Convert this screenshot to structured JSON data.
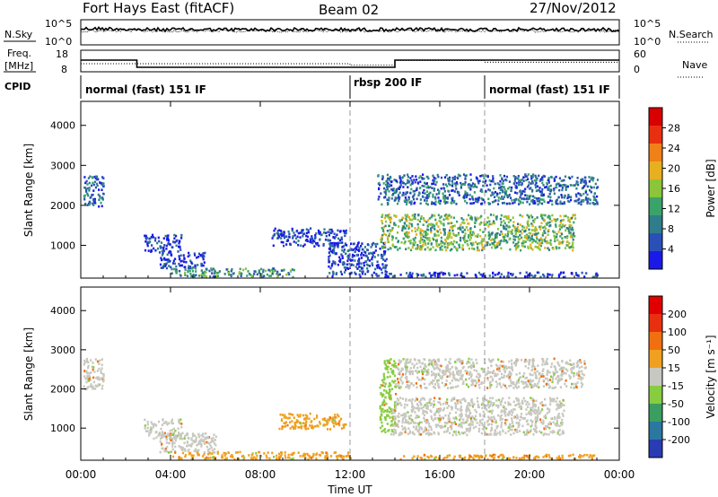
{
  "header": {
    "station": "Fort Hays East (fitACF)",
    "beam": "Beam 02",
    "date": "27/Nov/2012"
  },
  "noise_panel": {
    "left_label": "N.Sky",
    "right_label": "N.Search",
    "left_ticks": [
      "10^5",
      "10^0"
    ],
    "right_ticks": [
      "10^5",
      "10^0"
    ]
  },
  "freq_panel": {
    "left_label_line1": "Freq.",
    "left_label_line2": "[MHz]",
    "right_label": "Nave",
    "left_ticks": [
      "18",
      "8"
    ],
    "right_ticks": [
      "60",
      "0"
    ],
    "freq_steps": [
      {
        "t0": 0,
        "t1": 2.5,
        "mhz": 14.5
      },
      {
        "t0": 2.5,
        "t1": 14.0,
        "mhz": 10.5
      },
      {
        "t0": 14.0,
        "t1": 24.0,
        "mhz": 14.5
      }
    ],
    "nave_steps": [
      {
        "t0": 0,
        "t1": 2.5,
        "nave": 27
      },
      {
        "t0": 2.5,
        "t1": 12.0,
        "nave": 27
      },
      {
        "t0": 12.0,
        "t1": 14.0,
        "nave": 22
      },
      {
        "t0": 14.0,
        "t1": 18.0,
        "nave": 38
      },
      {
        "t0": 18.0,
        "t1": 24.0,
        "nave": 32
      }
    ]
  },
  "cpid": {
    "label": "CPID",
    "segments": [
      {
        "t0": 0,
        "name": "normal (fast) 151 IF"
      },
      {
        "t0": 12.0,
        "name": "rbsp 200 IF"
      },
      {
        "t0": 18.0,
        "name": "normal (fast) 151 IF"
      }
    ]
  },
  "chart_data": [
    {
      "type": "heatmap",
      "ylabel": "Slant Range [km]",
      "xlabel": "Time UT",
      "x_ticks": [
        "00:00",
        "04:00",
        "08:00",
        "12:00",
        "16:00",
        "20:00",
        "00:00"
      ],
      "y_ticks": [
        1000,
        2000,
        3000,
        4000
      ],
      "xlim": [
        0,
        24
      ],
      "ylim": [
        180,
        4600
      ],
      "colorbar_label": "Power [dB]",
      "colorbar_ticks": [
        4,
        8,
        12,
        16,
        20,
        24,
        28
      ],
      "colorbar_range": [
        0,
        32
      ],
      "colorbar_colors": [
        "#1a1ae8",
        "#2a50b8",
        "#2f7d8c",
        "#3aa36a",
        "#8cc43a",
        "#e8b020",
        "#f08018",
        "#e83010",
        "#d80000"
      ],
      "scatter_regions": [
        {
          "t0": 0.1,
          "t1": 1.0,
          "r0": 2000,
          "r1": 2800,
          "level": 2
        },
        {
          "t0": 2.8,
          "t1": 4.5,
          "r0": 850,
          "r1": 1300,
          "level": 1
        },
        {
          "t0": 3.5,
          "t1": 5.5,
          "r0": 450,
          "r1": 850,
          "level": 1
        },
        {
          "t0": 4.0,
          "t1": 9.5,
          "r0": 230,
          "r1": 450,
          "level": 3
        },
        {
          "t0": 8.5,
          "t1": 11.8,
          "r0": 1000,
          "r1": 1450,
          "level": 1
        },
        {
          "t0": 11.0,
          "t1": 13.6,
          "r0": 230,
          "r1": 1100,
          "level": 1
        },
        {
          "t0": 13.2,
          "t1": 20.8,
          "r0": 2050,
          "r1": 2800,
          "level": 2
        },
        {
          "t0": 20.8,
          "t1": 23.0,
          "r0": 2050,
          "r1": 2750,
          "level": 2
        },
        {
          "t0": 13.3,
          "t1": 22.0,
          "r0": 900,
          "r1": 1800,
          "level": 4
        },
        {
          "t0": 13.5,
          "t1": 23.0,
          "r0": 230,
          "r1": 350,
          "level": 1
        }
      ]
    },
    {
      "type": "heatmap",
      "ylabel": "Slant Range [km]",
      "xlabel": "Time UT",
      "x_ticks": [
        "00:00",
        "04:00",
        "08:00",
        "12:00",
        "16:00",
        "20:00",
        "00:00"
      ],
      "y_ticks": [
        1000,
        2000,
        3000,
        4000
      ],
      "xlim": [
        0,
        24
      ],
      "ylim": [
        180,
        4600
      ],
      "colorbar_label": "Velocity [m s⁻¹]",
      "colorbar_ticks": [
        200,
        100,
        50,
        15,
        -15,
        -50,
        -100,
        -200
      ],
      "colorbar_colors": [
        "#2a3cb4",
        "#2a78a0",
        "#3a9e60",
        "#88cc40",
        "#c8c8c0",
        "#f0a020",
        "#f07010",
        "#e83010",
        "#e00000"
      ],
      "scatter_regions": [
        {
          "t0": 0.1,
          "t1": 1.0,
          "r0": 2000,
          "r1": 2800,
          "color": "#c8c8c0"
        },
        {
          "t0": 2.8,
          "t1": 4.5,
          "r0": 750,
          "r1": 1250,
          "color": "#c8c8c0"
        },
        {
          "t0": 3.5,
          "t1": 6.0,
          "r0": 400,
          "r1": 900,
          "color": "#c8c8c0"
        },
        {
          "t0": 4.0,
          "t1": 12.0,
          "r0": 230,
          "r1": 420,
          "color": "#f0a020"
        },
        {
          "t0": 8.8,
          "t1": 11.8,
          "r0": 1000,
          "r1": 1400,
          "color": "#f0a020"
        },
        {
          "t0": 13.3,
          "t1": 14.0,
          "r0": 900,
          "r1": 2800,
          "color": "#88cc40"
        },
        {
          "t0": 14.0,
          "t1": 22.5,
          "r0": 2050,
          "r1": 2800,
          "color": "#c8c8c0"
        },
        {
          "t0": 13.8,
          "t1": 21.5,
          "r0": 850,
          "r1": 1800,
          "color": "#c8c8c0"
        },
        {
          "t0": 14.0,
          "t1": 23.0,
          "r0": 230,
          "r1": 350,
          "color": "#f0a020"
        }
      ]
    }
  ]
}
